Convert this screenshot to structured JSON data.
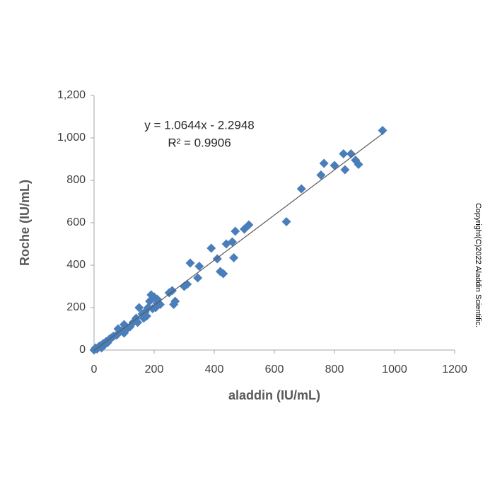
{
  "chart_data": {
    "type": "scatter",
    "x_label": "aladdin (IU/mL)",
    "y_label": "Roche (IU/mL)",
    "annotations": [
      "y = 1.0644x - 2.2948",
      "R² = 0.9906"
    ],
    "trendline": {
      "slope": 1.0644,
      "intercept": -2.2948
    },
    "copyright": "Copyright(C)2022 Aladdin Scientific.",
    "color": "#4a7ebb",
    "line_color": "#595959",
    "grid": false,
    "xlim": [
      0,
      1200
    ],
    "xticks": [
      0,
      200,
      400,
      600,
      800,
      1000,
      1200
    ],
    "ylim": [
      0,
      1200
    ],
    "yticks": [
      0,
      200,
      400,
      600,
      800,
      {
        "value": 1000,
        "label": "1,000"
      },
      {
        "value": 1200,
        "label": "1,200"
      }
    ],
    "x": [
      960,
      830,
      855,
      765,
      800,
      835,
      870,
      880,
      755,
      690,
      640,
      515,
      500,
      470,
      440,
      460,
      465,
      430,
      420,
      410,
      390,
      350,
      345,
      320,
      310,
      300,
      270,
      265,
      260,
      250,
      220,
      210,
      210,
      205,
      200,
      195,
      190,
      185,
      180,
      175,
      170,
      165,
      160,
      150,
      145,
      140,
      130,
      120,
      110,
      100,
      100,
      90,
      80,
      75,
      65,
      60,
      55,
      50,
      45,
      40,
      35,
      30,
      25,
      20,
      15,
      10,
      5,
      0
    ],
    "values": [
      1035,
      925,
      925,
      880,
      870,
      850,
      895,
      875,
      825,
      760,
      605,
      590,
      570,
      560,
      500,
      510,
      435,
      360,
      370,
      430,
      480,
      395,
      340,
      410,
      310,
      300,
      230,
      215,
      280,
      270,
      215,
      240,
      220,
      200,
      250,
      195,
      260,
      230,
      200,
      160,
      180,
      150,
      170,
      200,
      130,
      150,
      130,
      110,
      100,
      120,
      80,
      90,
      100,
      70,
      65,
      60,
      55,
      50,
      35,
      40,
      25,
      30,
      10,
      20,
      15,
      5,
      10,
      0
    ]
  }
}
